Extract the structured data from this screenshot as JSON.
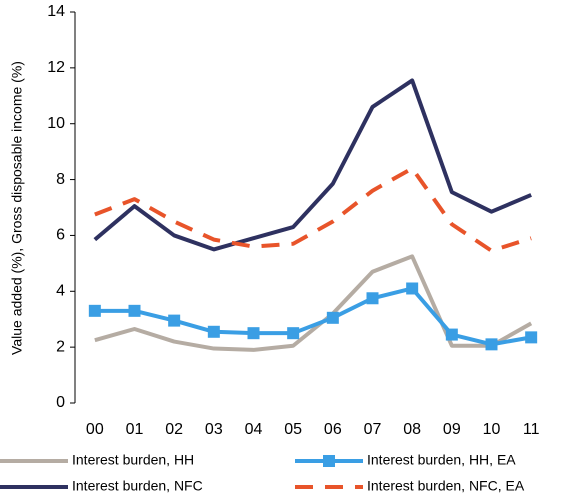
{
  "chart_data": {
    "type": "line",
    "y_label": "Value added (%), Gross disposable income (%)",
    "categories": [
      "00",
      "01",
      "02",
      "03",
      "04",
      "05",
      "06",
      "07",
      "08",
      "09",
      "10",
      "11"
    ],
    "series": [
      {
        "name": "Interest burden, HH",
        "color": "#b5aca3",
        "style": "solid",
        "marker": "none",
        "values": [
          2.25,
          2.65,
          2.2,
          1.95,
          1.9,
          2.05,
          3.2,
          4.7,
          5.25,
          2.05,
          2.05,
          2.85
        ]
      },
      {
        "name": "Interest burden, HH, EA",
        "color": "#3a9ee4",
        "style": "solid",
        "marker": "square",
        "values": [
          3.3,
          3.3,
          2.95,
          2.55,
          2.5,
          2.5,
          3.05,
          3.75,
          4.1,
          2.45,
          2.1,
          2.35
        ]
      },
      {
        "name": "Interest burden, NFC",
        "color": "#2e3160",
        "style": "solid",
        "marker": "none",
        "values": [
          5.85,
          7.05,
          6.0,
          5.5,
          5.9,
          6.3,
          7.85,
          10.6,
          11.55,
          7.55,
          6.85,
          7.45
        ]
      },
      {
        "name": "Interest burden, NFC, EA",
        "color": "#e8542a",
        "style": "dashed",
        "marker": "none",
        "values": [
          6.75,
          7.3,
          6.5,
          5.85,
          5.6,
          5.7,
          6.5,
          7.6,
          8.4,
          6.4,
          5.45,
          5.9
        ]
      }
    ],
    "ylim": [
      0,
      14
    ],
    "yticks": [
      0,
      2,
      4,
      6,
      8,
      10,
      12,
      14
    ],
    "grid": false,
    "legend": "bottom"
  }
}
